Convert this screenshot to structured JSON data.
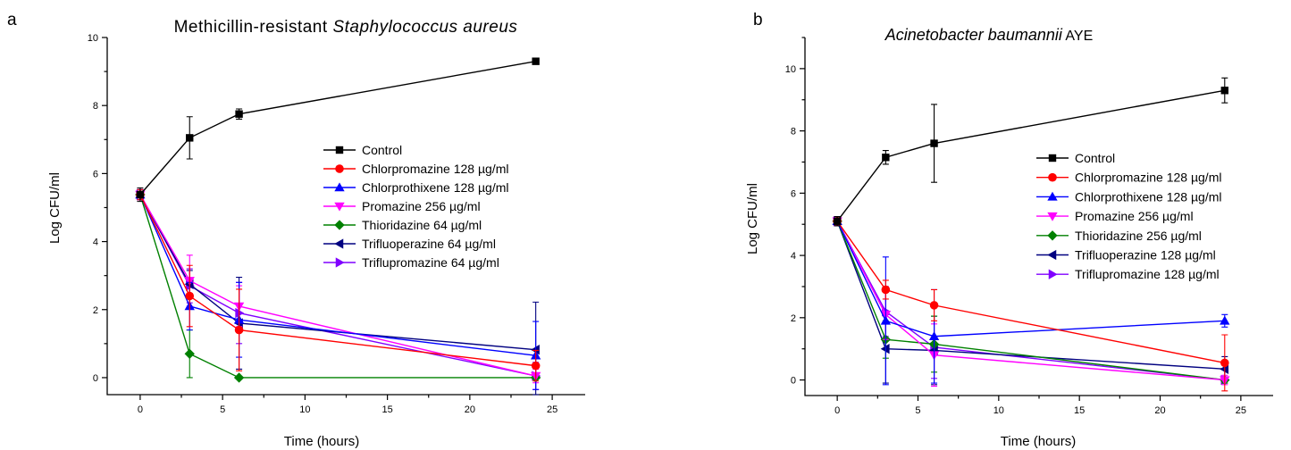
{
  "chart_data": [
    {
      "panel_label": "a",
      "type": "line",
      "title": "Methicillin-resistant ",
      "title_italic": "Staphylococcus aureus",
      "title_suffix": "",
      "xlabel": "Time (hours)",
      "ylabel": "Log CFU/ml",
      "xlim": [
        -2,
        27
      ],
      "ylim": [
        -0.5,
        10
      ],
      "x_ticks": [
        0,
        5,
        10,
        15,
        20,
        25
      ],
      "y_ticks": [
        0,
        2,
        4,
        6,
        8,
        10
      ],
      "legend_position": "center-right",
      "series": [
        {
          "name": "Control",
          "color": "#000000",
          "marker": "square",
          "x": [
            0,
            3,
            6,
            24
          ],
          "y": [
            5.38,
            7.05,
            7.75,
            9.3
          ],
          "err": [
            0.2,
            0.62,
            0.15,
            0.05
          ]
        },
        {
          "name": "Chlorpromazine 128 µg/ml",
          "color": "#ff0000",
          "marker": "circle",
          "x": [
            0,
            3,
            6,
            24
          ],
          "y": [
            5.38,
            2.4,
            1.4,
            0.35
          ],
          "err": [
            0.15,
            0.9,
            1.2,
            0.45
          ]
        },
        {
          "name": "Chlorprothixene 128 µg/ml",
          "color": "#0000ff",
          "marker": "triangle-up",
          "x": [
            0,
            3,
            6,
            24
          ],
          "y": [
            5.38,
            2.1,
            1.7,
            0.65
          ],
          "err": [
            0.15,
            0.7,
            1.1,
            1.0
          ]
        },
        {
          "name": "Promazine 256 µg/ml",
          "color": "#ff00ff",
          "marker": "triangle-down",
          "x": [
            0,
            3,
            6,
            24
          ],
          "y": [
            5.38,
            2.85,
            2.1,
            0.05
          ],
          "err": [
            0.15,
            0.75,
            0.6,
            0.2
          ]
        },
        {
          "name": "Thioridazine 64 µg/ml",
          "color": "#008000",
          "marker": "diamond",
          "x": [
            0,
            3,
            6,
            24
          ],
          "y": [
            5.38,
            0.7,
            0.0,
            0.0
          ],
          "err": [
            0.15,
            0.7,
            0.0,
            0.0
          ]
        },
        {
          "name": "Trifluoperazine 64 µg/ml",
          "color": "#000080",
          "marker": "triangle-left",
          "x": [
            0,
            3,
            6,
            24
          ],
          "y": [
            5.38,
            2.75,
            1.6,
            0.82
          ],
          "err": [
            0.15,
            0.4,
            1.35,
            1.4
          ]
        },
        {
          "name": "Triflupromazine 64 µg/ml",
          "color": "#8000ff",
          "marker": "triangle-right",
          "x": [
            0,
            3,
            6,
            24
          ],
          "y": [
            5.38,
            2.7,
            1.9,
            0.05
          ],
          "err": [
            0.15,
            0.5,
            0.9,
            0.4
          ]
        }
      ]
    },
    {
      "panel_label": "b",
      "type": "line",
      "title": "",
      "title_italic": "Acinetobacter baumannii",
      "title_suffix": " AYE",
      "xlabel": "Time (hours)",
      "ylabel": "Log CFU/ml",
      "xlim": [
        -2,
        27
      ],
      "ylim": [
        -0.5,
        11
      ],
      "x_ticks": [
        0,
        5,
        10,
        15,
        20,
        25
      ],
      "y_ticks": [
        0,
        2,
        4,
        6,
        8,
        10
      ],
      "legend_position": "center-right",
      "series": [
        {
          "name": "Control",
          "color": "#000000",
          "marker": "square",
          "x": [
            0,
            3,
            6,
            24
          ],
          "y": [
            5.1,
            7.15,
            7.6,
            9.3
          ],
          "err": [
            0.15,
            0.22,
            1.25,
            0.4
          ]
        },
        {
          "name": "Chlorpromazine 128 µg/ml",
          "color": "#ff0000",
          "marker": "circle",
          "x": [
            0,
            3,
            6,
            24
          ],
          "y": [
            5.1,
            2.9,
            2.4,
            0.55
          ],
          "err": [
            0.15,
            0.3,
            0.5,
            0.9
          ]
        },
        {
          "name": "Chlorprothixene 128 µg/ml",
          "color": "#0000ff",
          "marker": "triangle-up",
          "x": [
            0,
            3,
            6,
            24
          ],
          "y": [
            5.1,
            1.9,
            1.4,
            1.9
          ],
          "err": [
            0.15,
            2.05,
            1.5,
            0.2
          ]
        },
        {
          "name": "Promazine 256 µg/ml",
          "color": "#ff00ff",
          "marker": "triangle-down",
          "x": [
            0,
            3,
            6,
            24
          ],
          "y": [
            5.1,
            2.1,
            0.8,
            0.0
          ],
          "err": [
            0.15,
            0.8,
            1.0,
            0.15
          ]
        },
        {
          "name": "Thioridazine 256 µg/ml",
          "color": "#008000",
          "marker": "diamond",
          "x": [
            0,
            3,
            6,
            24
          ],
          "y": [
            5.1,
            1.3,
            1.15,
            0.0
          ],
          "err": [
            0.15,
            0.6,
            0.9,
            0.1
          ]
        },
        {
          "name": "Trifluoperazine 128 µg/ml",
          "color": "#000080",
          "marker": "triangle-left",
          "x": [
            0,
            3,
            6,
            24
          ],
          "y": [
            5.1,
            1.0,
            0.95,
            0.35
          ],
          "err": [
            0.15,
            1.1,
            1.1,
            0.4
          ]
        },
        {
          "name": "Triflupromazine 128 µg/ml",
          "color": "#8000ff",
          "marker": "triangle-right",
          "x": [
            0,
            3,
            6,
            24
          ],
          "y": [
            5.1,
            2.2,
            1.05,
            0.0
          ],
          "err": [
            0.15,
            0.8,
            1.0,
            0.1
          ]
        }
      ]
    }
  ]
}
